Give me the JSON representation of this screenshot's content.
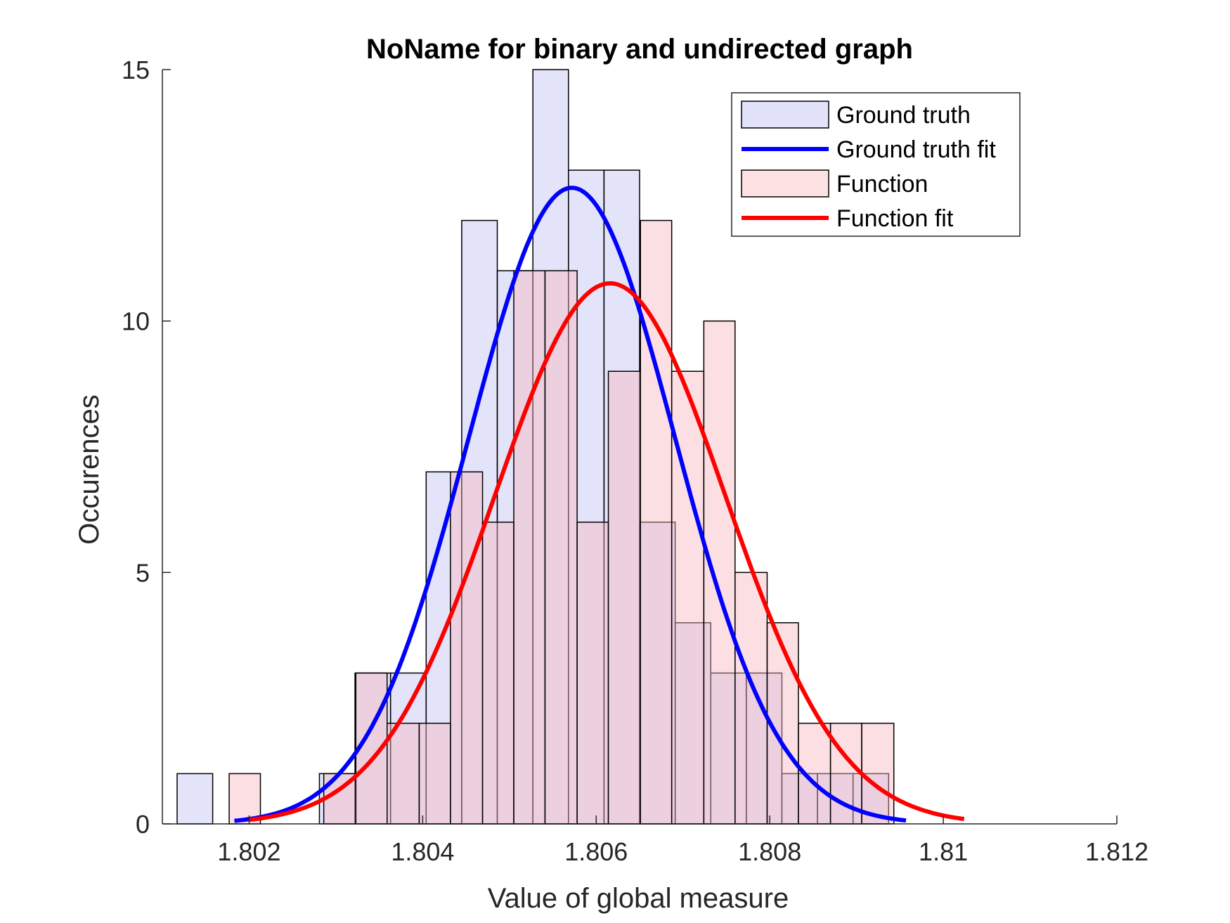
{
  "chart_data": {
    "type": "bar",
    "title": "NoName for binary and undirected graph",
    "xlabel": "Value of global measure",
    "ylabel": "Occurences",
    "xlim": [
      1.801,
      1.812
    ],
    "ylim": [
      0,
      15
    ],
    "xticks": [
      1.802,
      1.804,
      1.806,
      1.808,
      1.81,
      1.812
    ],
    "xtick_labels": [
      "1.802",
      "1.804",
      "1.806",
      "1.808",
      "1.81",
      "1.812"
    ],
    "yticks": [
      0,
      5,
      10,
      15
    ],
    "ytick_labels": [
      "0",
      "5",
      "10",
      "15"
    ],
    "grid": false,
    "legend_position": "top-right",
    "series": [
      {
        "name": "Ground truth",
        "kind": "histogram",
        "color": "#e2e2fa",
        "bin_edges": [
          1.80117,
          1.80158,
          1.80199,
          1.8024,
          1.80281,
          1.80322,
          1.80363,
          1.80404,
          1.80445,
          1.80486,
          1.80527,
          1.80568,
          1.80609,
          1.8065,
          1.80691,
          1.80732,
          1.80773,
          1.80814,
          1.80855,
          1.80896,
          1.80937
        ],
        "counts": [
          1,
          0,
          0,
          0,
          1,
          3,
          3,
          7,
          12,
          11,
          15,
          13,
          13,
          6,
          4,
          3,
          3,
          1,
          1,
          1
        ]
      },
      {
        "name": "Function",
        "kind": "histogram",
        "color": "#fde1e3",
        "bin_edges": [
          1.80177,
          1.80213,
          1.8025,
          1.80286,
          1.80323,
          1.80359,
          1.80396,
          1.80432,
          1.80469,
          1.80505,
          1.80541,
          1.80578,
          1.80614,
          1.80651,
          1.80687,
          1.80724,
          1.8076,
          1.80797,
          1.80833,
          1.8087,
          1.80906,
          1.80943
        ],
        "counts": [
          1,
          0,
          0,
          1,
          3,
          2,
          2,
          7,
          6,
          11,
          11,
          6,
          9,
          12,
          9,
          10,
          5,
          4,
          2,
          2,
          2
        ]
      },
      {
        "name": "Ground truth fit",
        "kind": "line",
        "color": "#0000ff",
        "mean": 1.80572,
        "sd": 0.00119,
        "peak": 12.65,
        "x_range": [
          1.80183,
          1.80957
        ]
      },
      {
        "name": "Function fit",
        "kind": "line",
        "color": "#ff0000",
        "mean": 1.80616,
        "sd": 0.00133,
        "peak": 10.75,
        "x_range": [
          1.802,
          1.81024
        ]
      }
    ]
  }
}
